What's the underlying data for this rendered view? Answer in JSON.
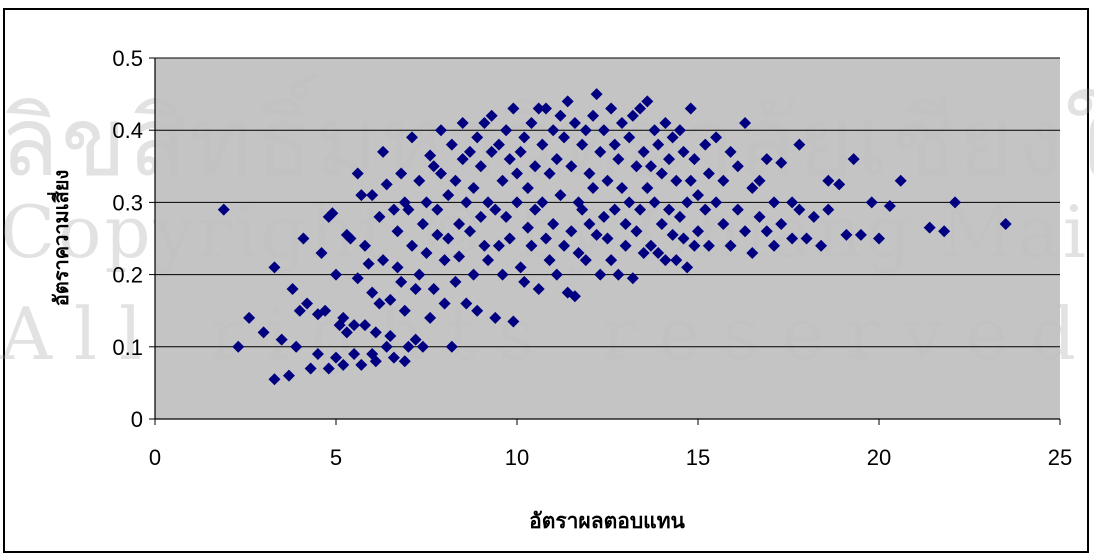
{
  "watermark": {
    "line1": "ลิขสิทธิ์มหาวิทยาลัยเชียงใหม่",
    "line2": "Copyright © by Chiang Mai University",
    "line3": "All rights reserved"
  },
  "colors": {
    "plot_background": "#c0c0c0",
    "marker": "#000080",
    "gridline": "#000000",
    "frame": "#000000"
  },
  "chart_data": {
    "type": "scatter",
    "title": "",
    "xlabel": "อัตราผลตอบแทน",
    "ylabel": "อัตราความเสี่ยง",
    "xlim": [
      0,
      25
    ],
    "ylim": [
      0,
      0.5
    ],
    "x_ticks": [
      "0",
      "5",
      "10",
      "15",
      "20",
      "25"
    ],
    "y_ticks": [
      "0",
      "0.1",
      "0.2",
      "0.3",
      "0.4",
      "0.5"
    ],
    "grid": "horizontal",
    "legend": "none",
    "marker": "diamond",
    "points": [
      [
        1.9,
        0.29
      ],
      [
        2.3,
        0.1
      ],
      [
        2.6,
        0.14
      ],
      [
        3.0,
        0.12
      ],
      [
        3.3,
        0.21
      ],
      [
        3.3,
        0.055
      ],
      [
        3.5,
        0.11
      ],
      [
        3.7,
        0.06
      ],
      [
        3.8,
        0.18
      ],
      [
        3.9,
        0.1
      ],
      [
        4.0,
        0.15
      ],
      [
        4.1,
        0.25
      ],
      [
        4.2,
        0.16
      ],
      [
        4.3,
        0.07
      ],
      [
        4.5,
        0.145
      ],
      [
        4.5,
        0.09
      ],
      [
        4.6,
        0.23
      ],
      [
        4.7,
        0.15
      ],
      [
        4.8,
        0.07
      ],
      [
        4.8,
        0.28
      ],
      [
        4.9,
        0.285
      ],
      [
        5.0,
        0.2
      ],
      [
        5.0,
        0.085
      ],
      [
        5.1,
        0.13
      ],
      [
        5.2,
        0.075
      ],
      [
        5.2,
        0.14
      ],
      [
        5.3,
        0.255
      ],
      [
        5.3,
        0.12
      ],
      [
        5.4,
        0.25
      ],
      [
        5.5,
        0.09
      ],
      [
        5.5,
        0.13
      ],
      [
        5.6,
        0.34
      ],
      [
        5.6,
        0.195
      ],
      [
        5.7,
        0.31
      ],
      [
        5.7,
        0.075
      ],
      [
        5.8,
        0.24
      ],
      [
        5.8,
        0.13
      ],
      [
        5.9,
        0.215
      ],
      [
        6.0,
        0.31
      ],
      [
        6.0,
        0.175
      ],
      [
        6.0,
        0.09
      ],
      [
        6.1,
        0.08
      ],
      [
        6.1,
        0.12
      ],
      [
        6.2,
        0.28
      ],
      [
        6.2,
        0.16
      ],
      [
        6.3,
        0.22
      ],
      [
        6.3,
        0.37
      ],
      [
        6.4,
        0.325
      ],
      [
        6.4,
        0.1
      ],
      [
        6.5,
        0.165
      ],
      [
        6.5,
        0.115
      ],
      [
        6.6,
        0.29
      ],
      [
        6.6,
        0.085
      ],
      [
        6.7,
        0.26
      ],
      [
        6.7,
        0.21
      ],
      [
        6.8,
        0.34
      ],
      [
        6.8,
        0.19
      ],
      [
        6.9,
        0.3
      ],
      [
        6.9,
        0.15
      ],
      [
        6.9,
        0.08
      ],
      [
        7.0,
        0.1
      ],
      [
        7.0,
        0.29
      ],
      [
        7.1,
        0.39
      ],
      [
        7.1,
        0.24
      ],
      [
        7.2,
        0.18
      ],
      [
        7.2,
        0.11
      ],
      [
        7.3,
        0.2
      ],
      [
        7.3,
        0.33
      ],
      [
        7.4,
        0.27
      ],
      [
        7.4,
        0.1
      ],
      [
        7.5,
        0.3
      ],
      [
        7.5,
        0.23
      ],
      [
        7.6,
        0.365
      ],
      [
        7.6,
        0.14
      ],
      [
        7.7,
        0.35
      ],
      [
        7.7,
        0.18
      ],
      [
        7.8,
        0.29
      ],
      [
        7.8,
        0.255
      ],
      [
        7.9,
        0.4
      ],
      [
        7.9,
        0.34
      ],
      [
        8.0,
        0.22
      ],
      [
        8.0,
        0.16
      ],
      [
        8.1,
        0.31
      ],
      [
        8.1,
        0.25
      ],
      [
        8.2,
        0.38
      ],
      [
        8.2,
        0.1
      ],
      [
        8.3,
        0.33
      ],
      [
        8.3,
        0.19
      ],
      [
        8.4,
        0.27
      ],
      [
        8.4,
        0.225
      ],
      [
        8.5,
        0.41
      ],
      [
        8.5,
        0.36
      ],
      [
        8.6,
        0.3
      ],
      [
        8.6,
        0.16
      ],
      [
        8.7,
        0.37
      ],
      [
        8.7,
        0.26
      ],
      [
        8.8,
        0.32
      ],
      [
        8.8,
        0.2
      ],
      [
        8.9,
        0.39
      ],
      [
        8.9,
        0.15
      ],
      [
        9.0,
        0.35
      ],
      [
        9.0,
        0.28
      ],
      [
        9.1,
        0.41
      ],
      [
        9.1,
        0.24
      ],
      [
        9.2,
        0.3
      ],
      [
        9.2,
        0.22
      ],
      [
        9.3,
        0.42
      ],
      [
        9.3,
        0.37
      ],
      [
        9.4,
        0.29
      ],
      [
        9.4,
        0.14
      ],
      [
        9.5,
        0.38
      ],
      [
        9.5,
        0.24
      ],
      [
        9.6,
        0.33
      ],
      [
        9.6,
        0.2
      ],
      [
        9.7,
        0.4
      ],
      [
        9.7,
        0.28
      ],
      [
        9.8,
        0.36
      ],
      [
        9.8,
        0.25
      ],
      [
        9.9,
        0.43
      ],
      [
        9.9,
        0.135
      ],
      [
        10.0,
        0.34
      ],
      [
        10.0,
        0.3
      ],
      [
        10.1,
        0.37
      ],
      [
        10.1,
        0.21
      ],
      [
        10.2,
        0.39
      ],
      [
        10.2,
        0.19
      ],
      [
        10.3,
        0.32
      ],
      [
        10.3,
        0.265
      ],
      [
        10.4,
        0.41
      ],
      [
        10.4,
        0.24
      ],
      [
        10.5,
        0.35
      ],
      [
        10.5,
        0.29
      ],
      [
        10.6,
        0.43
      ],
      [
        10.6,
        0.18
      ],
      [
        10.7,
        0.38
      ],
      [
        10.7,
        0.3
      ],
      [
        10.8,
        0.43
      ],
      [
        10.8,
        0.25
      ],
      [
        10.9,
        0.34
      ],
      [
        10.9,
        0.22
      ],
      [
        11.0,
        0.4
      ],
      [
        11.0,
        0.27
      ],
      [
        11.1,
        0.36
      ],
      [
        11.1,
        0.2
      ],
      [
        11.2,
        0.42
      ],
      [
        11.2,
        0.31
      ],
      [
        11.3,
        0.39
      ],
      [
        11.3,
        0.24
      ],
      [
        11.4,
        0.44
      ],
      [
        11.4,
        0.175
      ],
      [
        11.5,
        0.35
      ],
      [
        11.5,
        0.26
      ],
      [
        11.6,
        0.41
      ],
      [
        11.6,
        0.17
      ],
      [
        11.7,
        0.3
      ],
      [
        11.7,
        0.23
      ],
      [
        11.8,
        0.38
      ],
      [
        11.8,
        0.29
      ],
      [
        11.9,
        0.4
      ],
      [
        11.9,
        0.22
      ],
      [
        12.0,
        0.34
      ],
      [
        12.0,
        0.27
      ],
      [
        12.1,
        0.42
      ],
      [
        12.1,
        0.32
      ],
      [
        12.2,
        0.45
      ],
      [
        12.2,
        0.255
      ],
      [
        12.3,
        0.37
      ],
      [
        12.3,
        0.2
      ],
      [
        12.4,
        0.4
      ],
      [
        12.4,
        0.28
      ],
      [
        12.5,
        0.33
      ],
      [
        12.5,
        0.25
      ],
      [
        12.6,
        0.43
      ],
      [
        12.6,
        0.22
      ],
      [
        12.7,
        0.38
      ],
      [
        12.7,
        0.29
      ],
      [
        12.8,
        0.36
      ],
      [
        12.8,
        0.2
      ],
      [
        12.9,
        0.41
      ],
      [
        12.9,
        0.32
      ],
      [
        13.0,
        0.27
      ],
      [
        13.0,
        0.24
      ],
      [
        13.1,
        0.39
      ],
      [
        13.1,
        0.3
      ],
      [
        13.2,
        0.42
      ],
      [
        13.2,
        0.195
      ],
      [
        13.3,
        0.35
      ],
      [
        13.3,
        0.26
      ],
      [
        13.4,
        0.43
      ],
      [
        13.4,
        0.29
      ],
      [
        13.5,
        0.37
      ],
      [
        13.5,
        0.23
      ],
      [
        13.6,
        0.44
      ],
      [
        13.6,
        0.32
      ],
      [
        13.7,
        0.35
      ],
      [
        13.7,
        0.24
      ],
      [
        13.8,
        0.4
      ],
      [
        13.8,
        0.3
      ],
      [
        13.9,
        0.38
      ],
      [
        13.9,
        0.23
      ],
      [
        14.0,
        0.34
      ],
      [
        14.0,
        0.27
      ],
      [
        14.1,
        0.41
      ],
      [
        14.1,
        0.22
      ],
      [
        14.2,
        0.29
      ],
      [
        14.2,
        0.36
      ],
      [
        14.3,
        0.39
      ],
      [
        14.3,
        0.255
      ],
      [
        14.4,
        0.33
      ],
      [
        14.4,
        0.22
      ],
      [
        14.5,
        0.4
      ],
      [
        14.5,
        0.28
      ],
      [
        14.6,
        0.37
      ],
      [
        14.6,
        0.25
      ],
      [
        14.7,
        0.3
      ],
      [
        14.7,
        0.21
      ],
      [
        14.8,
        0.43
      ],
      [
        14.8,
        0.33
      ],
      [
        14.9,
        0.36
      ],
      [
        14.9,
        0.24
      ],
      [
        15.0,
        0.31
      ],
      [
        15.0,
        0.26
      ],
      [
        15.2,
        0.38
      ],
      [
        15.2,
        0.29
      ],
      [
        15.3,
        0.34
      ],
      [
        15.3,
        0.24
      ],
      [
        15.5,
        0.39
      ],
      [
        15.5,
        0.3
      ],
      [
        15.7,
        0.33
      ],
      [
        15.7,
        0.27
      ],
      [
        15.9,
        0.37
      ],
      [
        15.9,
        0.24
      ],
      [
        16.1,
        0.35
      ],
      [
        16.1,
        0.29
      ],
      [
        16.3,
        0.41
      ],
      [
        16.3,
        0.26
      ],
      [
        16.5,
        0.32
      ],
      [
        16.5,
        0.23
      ],
      [
        16.7,
        0.33
      ],
      [
        16.7,
        0.28
      ],
      [
        16.9,
        0.36
      ],
      [
        16.9,
        0.26
      ],
      [
        17.1,
        0.3
      ],
      [
        17.1,
        0.24
      ],
      [
        17.3,
        0.355
      ],
      [
        17.3,
        0.27
      ],
      [
        17.6,
        0.3
      ],
      [
        17.6,
        0.25
      ],
      [
        17.8,
        0.38
      ],
      [
        17.8,
        0.29
      ],
      [
        18.0,
        0.25
      ],
      [
        18.2,
        0.28
      ],
      [
        18.4,
        0.24
      ],
      [
        18.6,
        0.33
      ],
      [
        18.6,
        0.29
      ],
      [
        18.9,
        0.325
      ],
      [
        19.1,
        0.255
      ],
      [
        19.3,
        0.36
      ],
      [
        19.5,
        0.255
      ],
      [
        19.8,
        0.3
      ],
      [
        20.0,
        0.25
      ],
      [
        20.3,
        0.295
      ],
      [
        20.6,
        0.33
      ],
      [
        21.4,
        0.265
      ],
      [
        21.8,
        0.26
      ],
      [
        22.1,
        0.3
      ],
      [
        23.5,
        0.27
      ]
    ]
  }
}
